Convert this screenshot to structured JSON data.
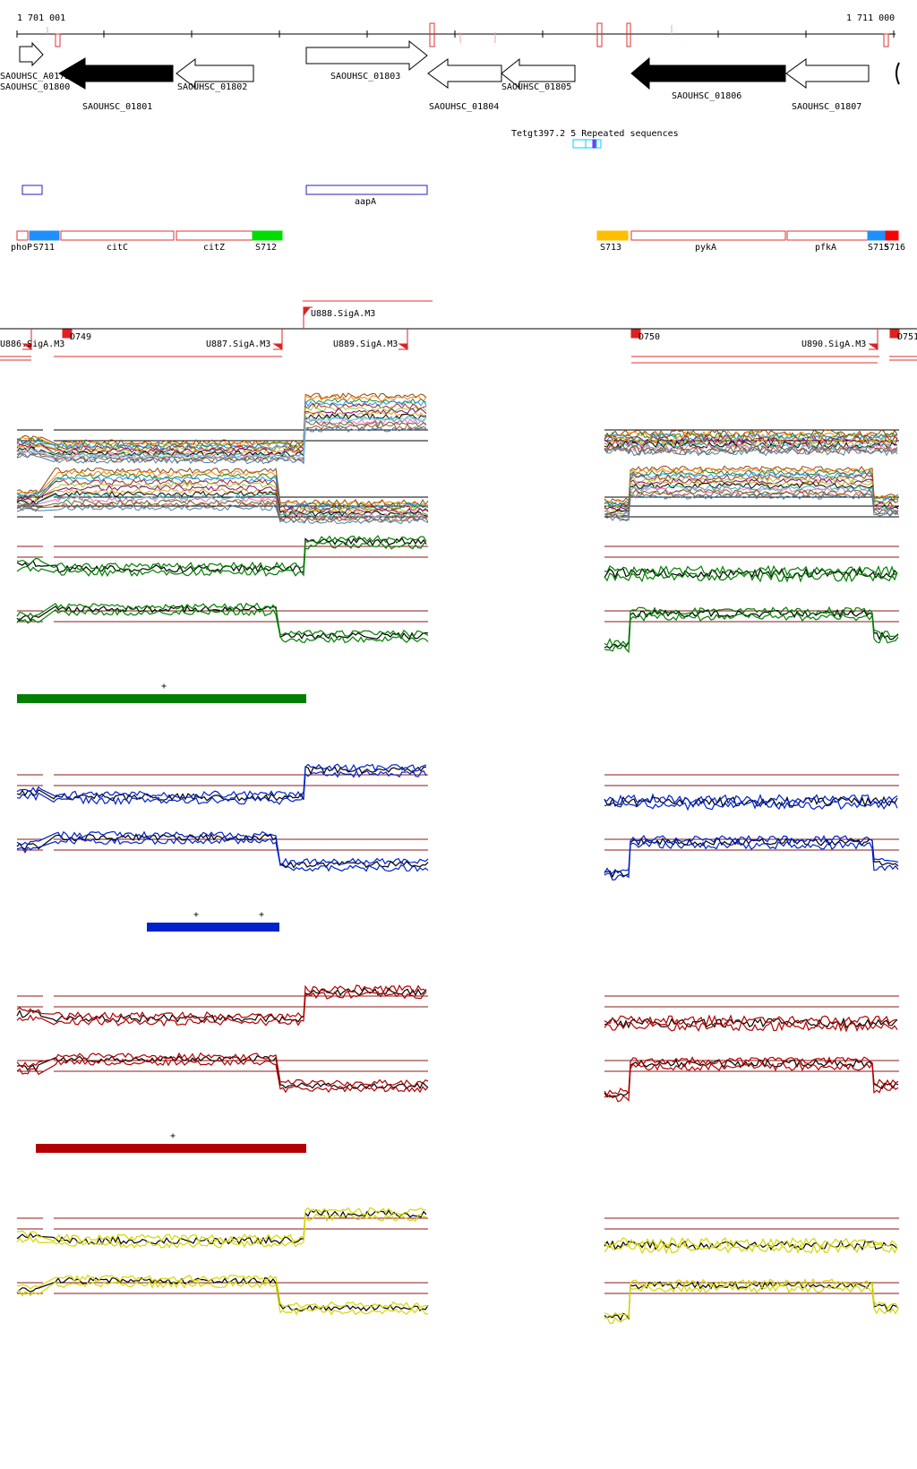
{
  "coordinates": {
    "start": "1 701 001",
    "end": "1 711 000"
  },
  "genes": [
    {
      "label": "SAOUHSC_A0172",
      "filled": false
    },
    {
      "label": "SAOUHSC_01800",
      "filled": false
    },
    {
      "label": "SAOUHSC_01801",
      "filled": true
    },
    {
      "label": "SAOUHSC_01802",
      "filled": false
    },
    {
      "label": "SAOUHSC_01803",
      "filled": false
    },
    {
      "label": "SAOUHSC_01804",
      "filled": false
    },
    {
      "label": "SAOUHSC_01805",
      "filled": false
    },
    {
      "label": "SAOUHSC_01806",
      "filled": true
    },
    {
      "label": "SAOUHSC_01807",
      "filled": false
    }
  ],
  "repeats": {
    "label": "Tetgt397.2 5 Repeated sequences"
  },
  "annotation_track": [
    {
      "label": ""
    },
    {
      "label": "aapA"
    }
  ],
  "segments": [
    {
      "label": "phoP",
      "color": "#ffffff"
    },
    {
      "label": "S711",
      "color": "#1e90ff"
    },
    {
      "label": "citC",
      "color": "#ffffff"
    },
    {
      "label": "citZ",
      "color": "#ffffff"
    },
    {
      "label": "S712",
      "color": "#00dd00"
    },
    {
      "label": "S713",
      "color": "#ffbf00"
    },
    {
      "label": "pykA",
      "color": "#ffffff"
    },
    {
      "label": "pfkA",
      "color": "#ffffff"
    },
    {
      "label": "S715",
      "color": "#1e90ff"
    },
    {
      "label": "S716",
      "color": "#ff0000"
    }
  ],
  "promoters": [
    {
      "label": "U886.SigA.M3"
    },
    {
      "label": "D749"
    },
    {
      "label": "U887.SigA.M3"
    },
    {
      "label": "U888.SigA.M3"
    },
    {
      "label": "U889.SigA.M3"
    },
    {
      "label": "D750"
    },
    {
      "label": "U890.SigA.M3"
    },
    {
      "label": "D751"
    }
  ],
  "condition_panels": [
    {
      "color": "#007f00",
      "marks": [
        "+"
      ]
    },
    {
      "color": "#0022cc",
      "marks": [
        "+",
        "+"
      ]
    },
    {
      "color": "#b30000",
      "marks": [
        "+"
      ]
    },
    {
      "color": "#d6d600",
      "marks": []
    }
  ]
}
